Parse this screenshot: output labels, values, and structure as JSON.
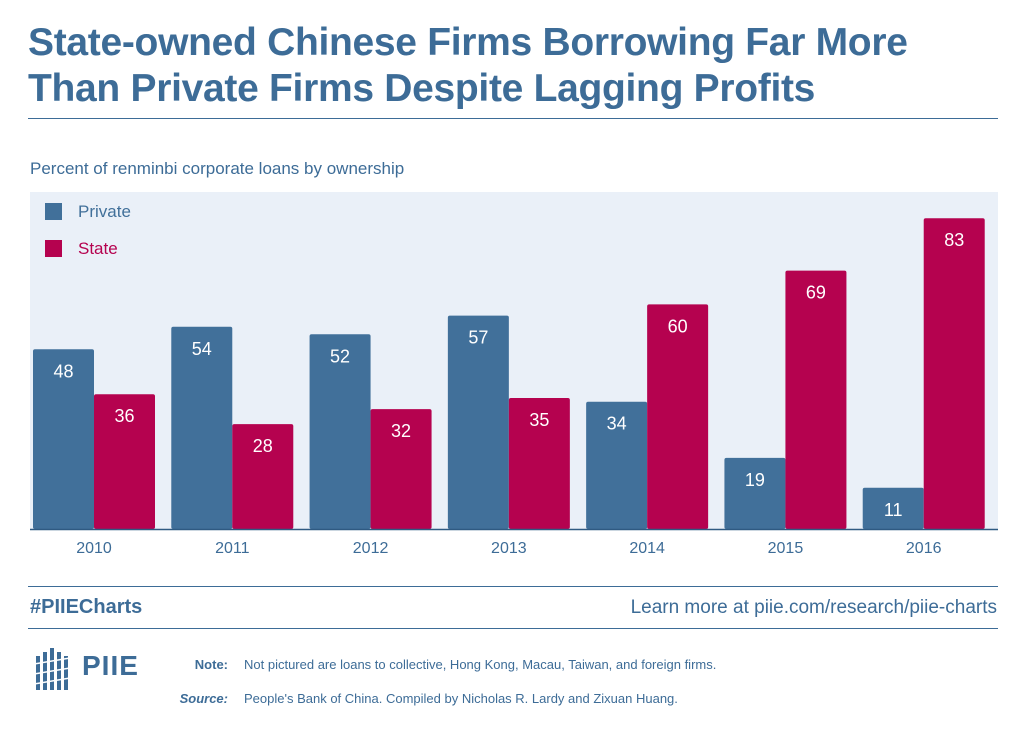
{
  "header": {
    "title": "State-owned Chinese Firms Borrowing Far More Than Private Firms Despite Lagging Profits",
    "subtitle": "Percent of renminbi corporate loans by ownership"
  },
  "colors": {
    "private": "#41709a",
    "state": "#b5024f",
    "plot_background": "#eaf0f8",
    "text": "#3d6c97"
  },
  "chart_data": {
    "type": "bar",
    "categories": [
      "2010",
      "2011",
      "2012",
      "2013",
      "2014",
      "2015",
      "2016"
    ],
    "series": [
      {
        "name": "Private",
        "values": [
          48,
          54,
          52,
          57,
          34,
          19,
          11
        ]
      },
      {
        "name": "State",
        "values": [
          36,
          28,
          32,
          35,
          60,
          69,
          83
        ]
      }
    ],
    "ylim": [
      0,
      90
    ],
    "legend_position": "top-left",
    "grid": false,
    "data_labels": true
  },
  "footer": {
    "hashtag": "#PIIECharts",
    "learn_more": "Learn more at piie.com/research/piie-charts",
    "logo_text": "PIIE",
    "note_label": "Note:",
    "note_text": "Not pictured are loans to collective, Hong Kong, Macau, Taiwan, and foreign firms.",
    "source_label": "Source:",
    "source_text": "People's Bank of China. Compiled by Nicholas R. Lardy and Zixuan Huang."
  }
}
